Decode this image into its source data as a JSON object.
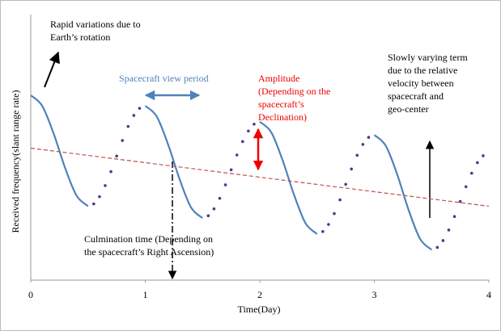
{
  "chart_data": {
    "type": "line",
    "x_label": "Time(Day)",
    "y_label": "Received frequency(slant range rate)",
    "xlim": [
      0,
      4
    ],
    "xticks": [
      0,
      1,
      2,
      3,
      4
    ],
    "ylim": [
      0,
      10
    ],
    "grid": false,
    "series": [
      {
        "color": "#4f81bd",
        "style": "solid",
        "x": [
          0,
          0.1,
          0.2,
          0.3,
          0.4,
          0.5,
          0.75,
          1,
          1.1,
          1.2,
          1.3,
          1.4,
          1.5,
          1.75,
          2,
          2.1,
          2.2,
          2.3,
          2.4,
          2.5,
          2.75,
          3,
          3.1,
          3.2,
          3.3,
          3.4,
          3.5
        ],
        "values": [
          7.0,
          6.6,
          5.55,
          4.25,
          3.2,
          2.8,
          null,
          6.6,
          6.2,
          5.13,
          3.82,
          2.75,
          2.35,
          null,
          6.0,
          5.6,
          4.53,
          3.22,
          2.15,
          1.75,
          null,
          5.5,
          5.09,
          4.0,
          2.65,
          1.56,
          1.15
        ]
      },
      {
        "color": "#4b3a8c",
        "style": "dots",
        "x": [
          0.55,
          0.6,
          0.65,
          0.7,
          0.75,
          0.8,
          0.85,
          0.9,
          0.95,
          1.55,
          1.6,
          1.65,
          1.7,
          1.75,
          1.8,
          1.85,
          1.9,
          1.95,
          2.55,
          2.6,
          2.65,
          2.7,
          2.75,
          2.8,
          2.85,
          2.9,
          2.95,
          3.55,
          3.6,
          3.65,
          3.7,
          3.75,
          3.8,
          3.85,
          3.9,
          3.95
        ],
        "values": [
          2.89,
          3.16,
          3.58,
          4.11,
          4.7,
          5.29,
          5.82,
          6.24,
          6.51,
          2.44,
          2.7,
          3.1,
          3.61,
          4.18,
          4.74,
          5.25,
          5.65,
          5.91,
          1.84,
          2.11,
          2.52,
          3.04,
          3.63,
          4.21,
          4.73,
          5.14,
          5.41,
          1.24,
          1.5,
          1.9,
          2.41,
          2.98,
          3.54,
          4.05,
          4.45,
          4.71
        ]
      },
      {
        "color": "#c0504d",
        "style": "dashed",
        "x": [
          0,
          4
        ],
        "values": [
          5.0,
          2.8
        ]
      }
    ],
    "annotations": {
      "rotation": [
        "Rapid variations due to",
        "Earth’s rotation"
      ],
      "view_period": [
        "Spacecraft view period"
      ],
      "amplitude": [
        "Amplitude",
        "(Depending on the",
        "spacecraft’s",
        "Declination)"
      ],
      "slow_term": [
        "Slowly varying term",
        "due to the relative",
        "velocity between",
        "spacecraft and",
        "geo-center"
      ],
      "culmination": [
        "Culmination time (Depending on",
        "the spacecraft’s Right Ascension)"
      ]
    }
  }
}
